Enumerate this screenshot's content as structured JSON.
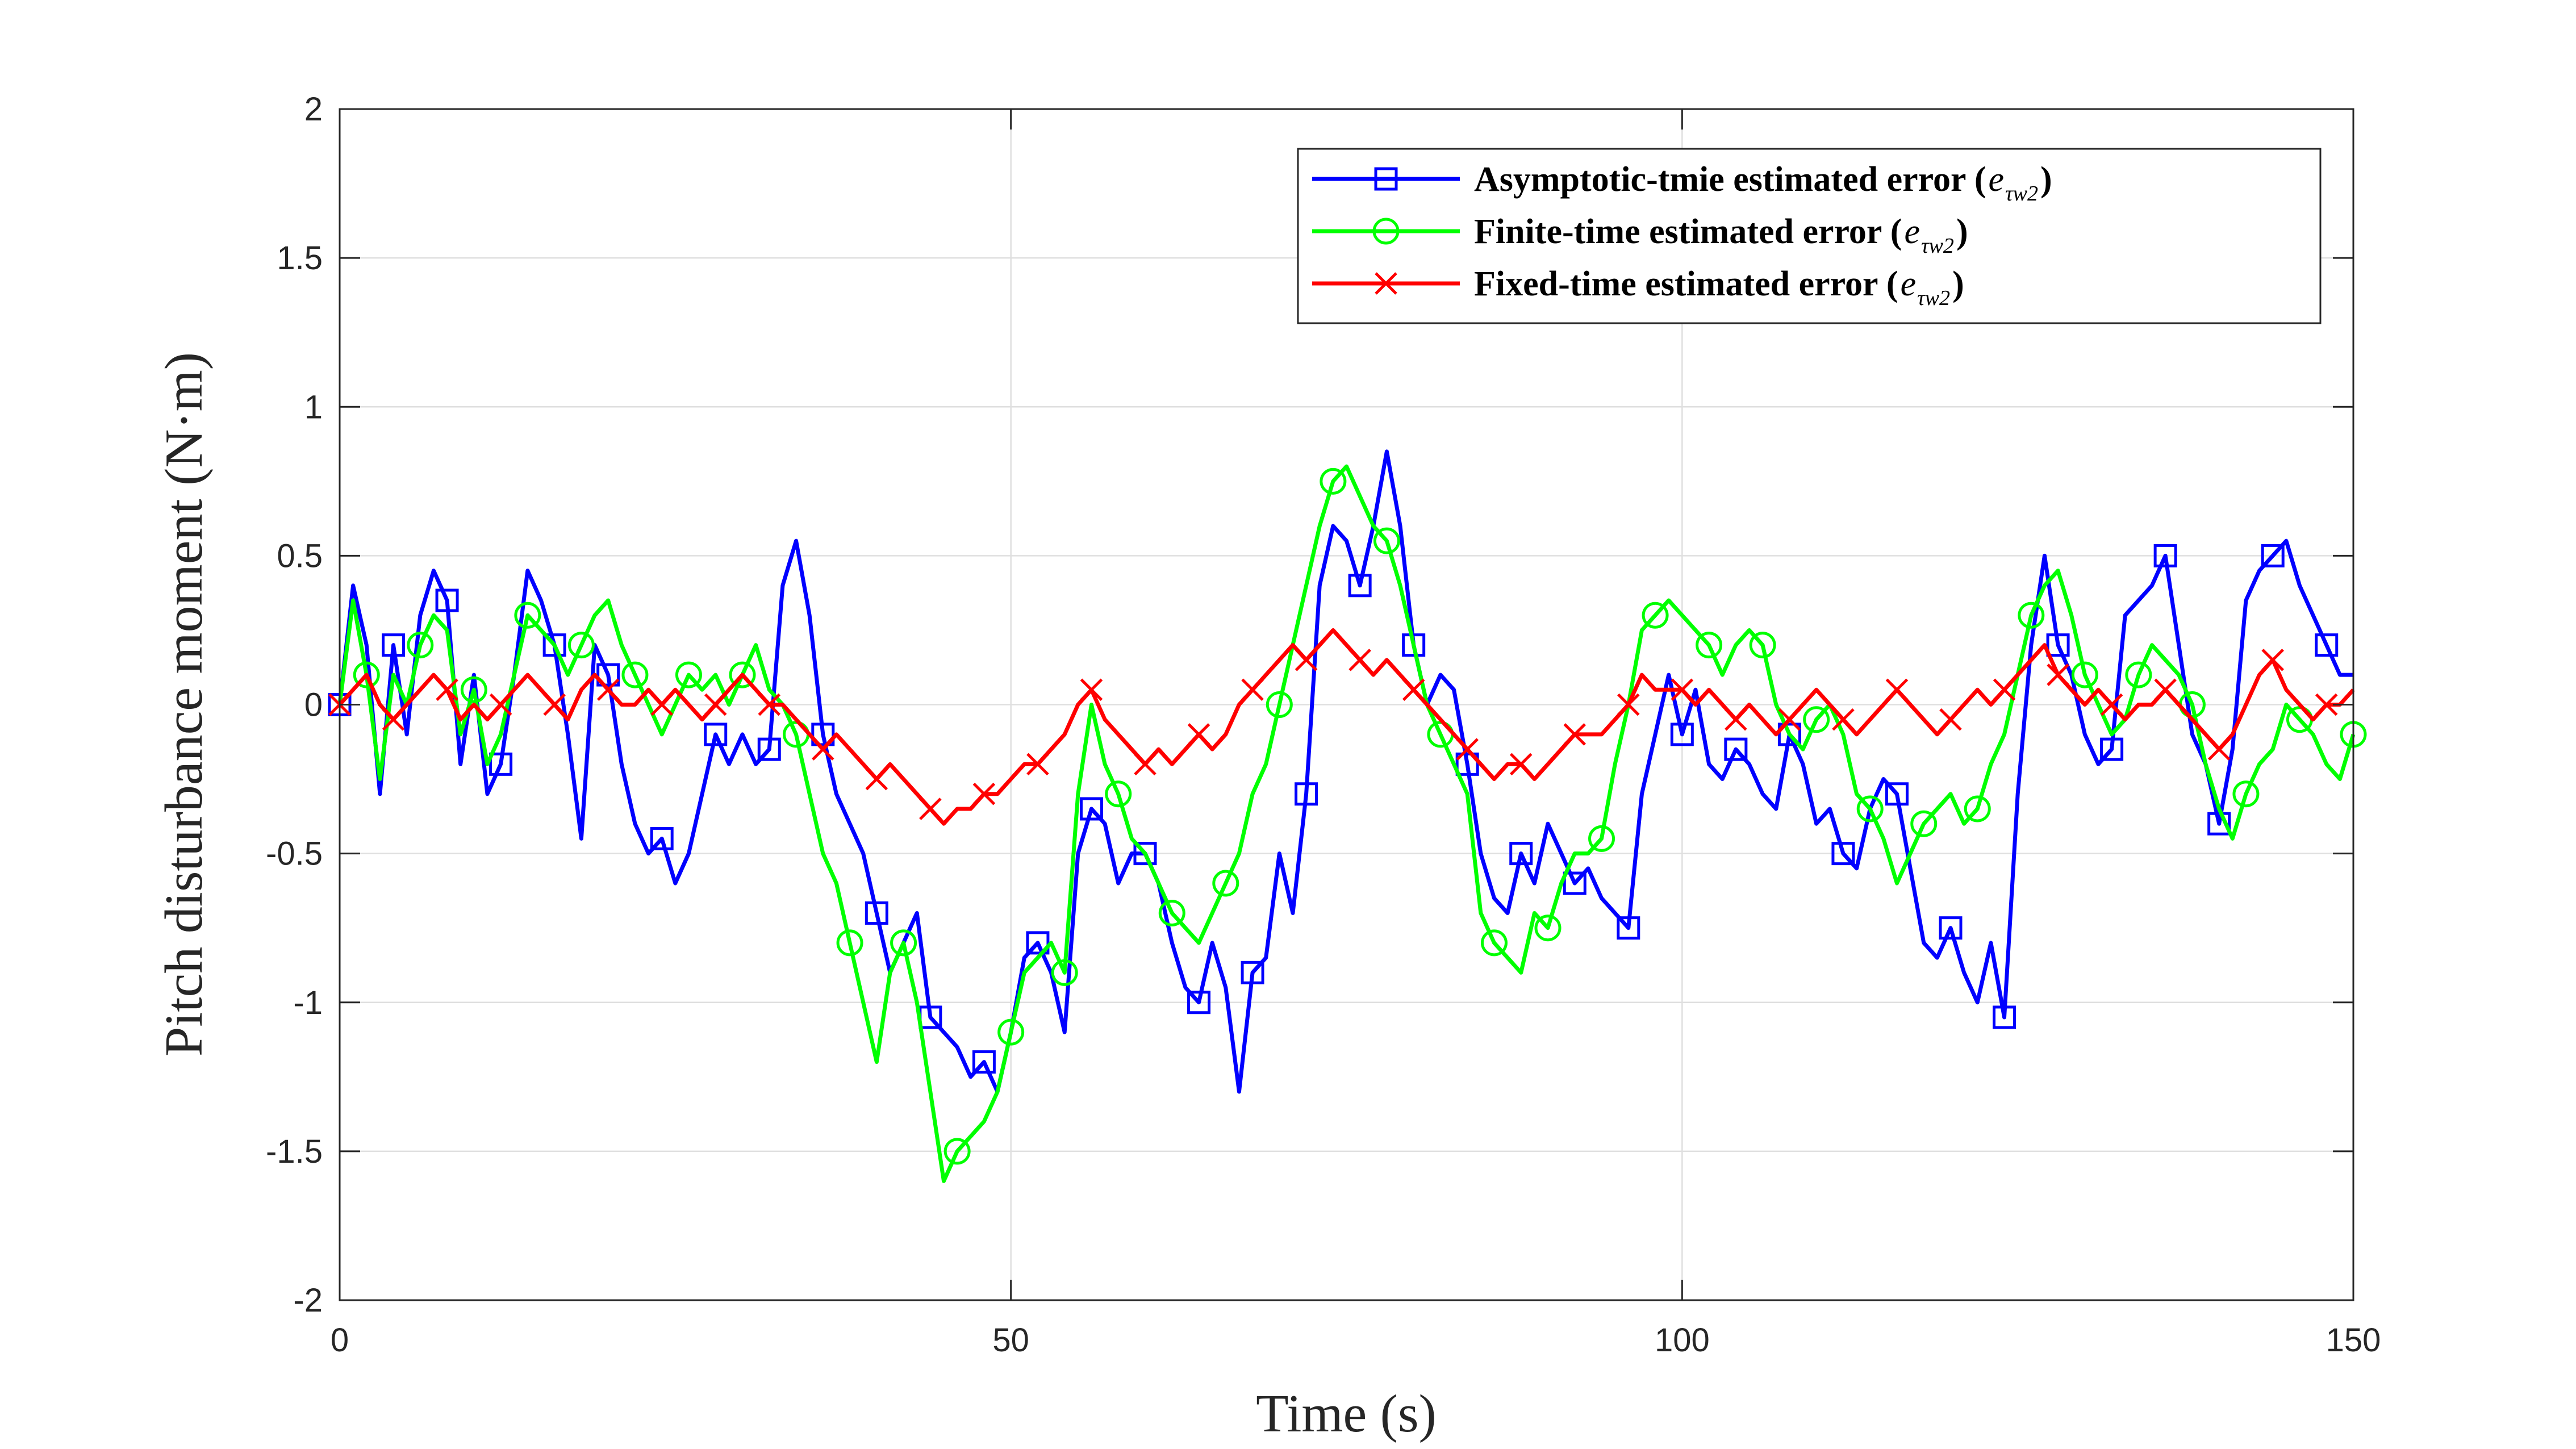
{
  "chart_data": {
    "type": "line",
    "title": "",
    "xlabel": "Time (s)",
    "ylabel": "Pitch disturbance moment (N·m)",
    "xlim": [
      0,
      150
    ],
    "ylim": [
      -2,
      2
    ],
    "xticks": [
      0,
      50,
      100,
      150
    ],
    "xtick_labels": [
      "0",
      "50",
      "100",
      "150"
    ],
    "yticks": [
      -2,
      -1.5,
      -1,
      -0.5,
      0,
      0.5,
      1,
      1.5,
      2
    ],
    "ytick_labels": [
      "-2",
      "-1.5",
      "-1",
      "-0.5",
      "0",
      "0.5",
      "1",
      "1.5",
      "2"
    ],
    "grid": true,
    "legend_position": "top-right",
    "series": [
      {
        "name": "Asymptotic-tmie estimated error (e",
        "symbol": "e",
        "subscript": "τw2",
        "color": "#0000ff",
        "marker": "square",
        "x": [
          0,
          1,
          2,
          3,
          4,
          5,
          6,
          7,
          8,
          9,
          10,
          11,
          12,
          13,
          14,
          15,
          16,
          17,
          18,
          19,
          20,
          21,
          22,
          23,
          24,
          25,
          26,
          27,
          28,
          29,
          30,
          31,
          32,
          33,
          34,
          35,
          36,
          37,
          38,
          39,
          40,
          41,
          42,
          43,
          44,
          45,
          46,
          47,
          48,
          49,
          50,
          51,
          52,
          53,
          54,
          55,
          56,
          57,
          58,
          59,
          60,
          61,
          62,
          63,
          64,
          65,
          66,
          67,
          68,
          69,
          70,
          71,
          72,
          73,
          74,
          75,
          76,
          77,
          78,
          79,
          80,
          81,
          82,
          83,
          84,
          85,
          86,
          87,
          88,
          89,
          90,
          91,
          92,
          93,
          94,
          95,
          96,
          97,
          98,
          99,
          100,
          101,
          102,
          103,
          104,
          105,
          106,
          107,
          108,
          109,
          110,
          111,
          112,
          113,
          114,
          115,
          116,
          117,
          118,
          119,
          120,
          121,
          122,
          123,
          124,
          125,
          126,
          127,
          128,
          129,
          130,
          131,
          132,
          133,
          134,
          135,
          136,
          137,
          138,
          139,
          140,
          141,
          142,
          143,
          144,
          145,
          146,
          147,
          148,
          149,
          150
        ],
        "values": [
          0,
          0.4,
          0.2,
          -0.3,
          0.2,
          -0.1,
          0.3,
          0.45,
          0.35,
          -0.2,
          0.1,
          -0.3,
          -0.2,
          0.1,
          0.45,
          0.35,
          0.2,
          -0.1,
          -0.45,
          0.2,
          0.1,
          -0.2,
          -0.4,
          -0.5,
          -0.45,
          -0.6,
          -0.5,
          -0.3,
          -0.1,
          -0.2,
          -0.1,
          -0.2,
          -0.15,
          0.4,
          0.55,
          0.3,
          -0.1,
          -0.3,
          -0.4,
          -0.5,
          -0.7,
          -0.9,
          -0.8,
          -0.7,
          -1.05,
          -1.1,
          -1.15,
          -1.25,
          -1.2,
          -1.3,
          -1.1,
          -0.85,
          -0.8,
          -0.9,
          -1.1,
          -0.5,
          -0.35,
          -0.4,
          -0.6,
          -0.5,
          -0.5,
          -0.6,
          -0.8,
          -0.95,
          -1.0,
          -0.8,
          -0.95,
          -1.3,
          -0.9,
          -0.85,
          -0.5,
          -0.7,
          -0.3,
          0.4,
          0.6,
          0.55,
          0.4,
          0.6,
          0.85,
          0.6,
          0.2,
          0.0,
          0.1,
          0.05,
          -0.2,
          -0.5,
          -0.65,
          -0.7,
          -0.5,
          -0.6,
          -0.4,
          -0.5,
          -0.6,
          -0.55,
          -0.65,
          -0.7,
          -0.75,
          -0.3,
          -0.1,
          0.1,
          -0.1,
          0.05,
          -0.2,
          -0.25,
          -0.15,
          -0.2,
          -0.3,
          -0.35,
          -0.1,
          -0.2,
          -0.4,
          -0.35,
          -0.5,
          -0.55,
          -0.35,
          -0.25,
          -0.3,
          -0.55,
          -0.8,
          -0.85,
          -0.75,
          -0.9,
          -1.0,
          -0.8,
          -1.05,
          -0.3,
          0.2,
          0.5,
          0.2,
          0.1,
          -0.1,
          -0.2,
          -0.15,
          0.3,
          0.35,
          0.4,
          0.5,
          0.2,
          -0.1,
          -0.2,
          -0.4,
          -0.15,
          0.35,
          0.45,
          0.5,
          0.55,
          0.4,
          0.3,
          0.2,
          0.1,
          0.1
        ]
      },
      {
        "name": "Finite-time estimated error (e",
        "symbol": "e",
        "subscript": "τw2",
        "color": "#00ff00",
        "marker": "circle",
        "x": [
          0,
          1,
          2,
          3,
          4,
          5,
          6,
          7,
          8,
          9,
          10,
          11,
          12,
          13,
          14,
          15,
          16,
          17,
          18,
          19,
          20,
          21,
          22,
          23,
          24,
          25,
          26,
          27,
          28,
          29,
          30,
          31,
          32,
          33,
          34,
          35,
          36,
          37,
          38,
          39,
          40,
          41,
          42,
          43,
          44,
          45,
          46,
          47,
          48,
          49,
          50,
          51,
          52,
          53,
          54,
          55,
          56,
          57,
          58,
          59,
          60,
          61,
          62,
          63,
          64,
          65,
          66,
          67,
          68,
          69,
          70,
          71,
          72,
          73,
          74,
          75,
          76,
          77,
          78,
          79,
          80,
          81,
          82,
          83,
          84,
          85,
          86,
          87,
          88,
          89,
          90,
          91,
          92,
          93,
          94,
          95,
          96,
          97,
          98,
          99,
          100,
          101,
          102,
          103,
          104,
          105,
          106,
          107,
          108,
          109,
          110,
          111,
          112,
          113,
          114,
          115,
          116,
          117,
          118,
          119,
          120,
          121,
          122,
          123,
          124,
          125,
          126,
          127,
          128,
          129,
          130,
          131,
          132,
          133,
          134,
          135,
          136,
          137,
          138,
          139,
          140,
          141,
          142,
          143,
          144,
          145,
          146,
          147,
          148,
          149,
          150
        ],
        "values": [
          0,
          0.35,
          0.1,
          -0.25,
          0.1,
          0.0,
          0.2,
          0.3,
          0.25,
          -0.1,
          0.05,
          -0.2,
          -0.1,
          0.1,
          0.3,
          0.25,
          0.2,
          0.1,
          0.2,
          0.3,
          0.35,
          0.2,
          0.1,
          0.0,
          -0.1,
          0.0,
          0.1,
          0.05,
          0.1,
          0.0,
          0.1,
          0.2,
          0.05,
          0.0,
          -0.1,
          -0.3,
          -0.5,
          -0.6,
          -0.8,
          -1.0,
          -1.2,
          -0.9,
          -0.8,
          -1.0,
          -1.3,
          -1.6,
          -1.5,
          -1.45,
          -1.4,
          -1.3,
          -1.1,
          -0.9,
          -0.85,
          -0.8,
          -0.9,
          -0.3,
          0.0,
          -0.2,
          -0.3,
          -0.45,
          -0.5,
          -0.6,
          -0.7,
          -0.75,
          -0.8,
          -0.7,
          -0.6,
          -0.5,
          -0.3,
          -0.2,
          0.0,
          0.2,
          0.4,
          0.6,
          0.75,
          0.8,
          0.7,
          0.6,
          0.55,
          0.4,
          0.2,
          0.0,
          -0.1,
          -0.2,
          -0.3,
          -0.7,
          -0.8,
          -0.85,
          -0.9,
          -0.7,
          -0.75,
          -0.6,
          -0.5,
          -0.5,
          -0.45,
          -0.2,
          0.0,
          0.25,
          0.3,
          0.35,
          0.3,
          0.25,
          0.2,
          0.1,
          0.2,
          0.25,
          0.2,
          0.0,
          -0.1,
          -0.15,
          -0.05,
          0.0,
          -0.1,
          -0.3,
          -0.35,
          -0.45,
          -0.6,
          -0.5,
          -0.4,
          -0.35,
          -0.3,
          -0.4,
          -0.35,
          -0.2,
          -0.1,
          0.1,
          0.3,
          0.4,
          0.45,
          0.3,
          0.1,
          0.0,
          -0.1,
          -0.05,
          0.1,
          0.2,
          0.15,
          0.1,
          0.0,
          -0.2,
          -0.35,
          -0.45,
          -0.3,
          -0.2,
          -0.15,
          0.0,
          -0.05,
          -0.1,
          -0.2,
          -0.25,
          -0.1
        ]
      },
      {
        "name": "Fixed-time estimated error (e",
        "symbol": "e",
        "subscript": "τw2",
        "color": "#ff0000",
        "marker": "x",
        "x": [
          0,
          1,
          2,
          3,
          4,
          5,
          6,
          7,
          8,
          9,
          10,
          11,
          12,
          13,
          14,
          15,
          16,
          17,
          18,
          19,
          20,
          21,
          22,
          23,
          24,
          25,
          26,
          27,
          28,
          29,
          30,
          31,
          32,
          33,
          34,
          35,
          36,
          37,
          38,
          39,
          40,
          41,
          42,
          43,
          44,
          45,
          46,
          47,
          48,
          49,
          50,
          51,
          52,
          53,
          54,
          55,
          56,
          57,
          58,
          59,
          60,
          61,
          62,
          63,
          64,
          65,
          66,
          67,
          68,
          69,
          70,
          71,
          72,
          73,
          74,
          75,
          76,
          77,
          78,
          79,
          80,
          81,
          82,
          83,
          84,
          85,
          86,
          87,
          88,
          89,
          90,
          91,
          92,
          93,
          94,
          95,
          96,
          97,
          98,
          99,
          100,
          101,
          102,
          103,
          104,
          105,
          106,
          107,
          108,
          109,
          110,
          111,
          112,
          113,
          114,
          115,
          116,
          117,
          118,
          119,
          120,
          121,
          122,
          123,
          124,
          125,
          126,
          127,
          128,
          129,
          130,
          131,
          132,
          133,
          134,
          135,
          136,
          137,
          138,
          139,
          140,
          141,
          142,
          143,
          144,
          145,
          146,
          147,
          148,
          149,
          150
        ],
        "values": [
          0,
          0.05,
          0.1,
          0.0,
          -0.05,
          0.0,
          0.05,
          0.1,
          0.05,
          -0.05,
          0.0,
          -0.05,
          0.0,
          0.05,
          0.1,
          0.05,
          0.0,
          -0.05,
          0.05,
          0.1,
          0.05,
          0.0,
          0.0,
          0.05,
          0.0,
          0.05,
          0.0,
          -0.05,
          0.0,
          0.05,
          0.1,
          0.05,
          0.0,
          0.0,
          -0.05,
          -0.1,
          -0.15,
          -0.1,
          -0.15,
          -0.2,
          -0.25,
          -0.2,
          -0.25,
          -0.3,
          -0.35,
          -0.4,
          -0.35,
          -0.35,
          -0.3,
          -0.3,
          -0.25,
          -0.2,
          -0.2,
          -0.15,
          -0.1,
          0.0,
          0.05,
          -0.05,
          -0.1,
          -0.15,
          -0.2,
          -0.15,
          -0.2,
          -0.15,
          -0.1,
          -0.15,
          -0.1,
          0.0,
          0.05,
          0.1,
          0.15,
          0.2,
          0.15,
          0.2,
          0.25,
          0.2,
          0.15,
          0.1,
          0.15,
          0.1,
          0.05,
          0.0,
          -0.05,
          -0.1,
          -0.15,
          -0.2,
          -0.25,
          -0.2,
          -0.2,
          -0.25,
          -0.2,
          -0.15,
          -0.1,
          -0.1,
          -0.1,
          -0.05,
          0.0,
          0.1,
          0.05,
          0.05,
          0.05,
          0.0,
          0.05,
          0.0,
          -0.05,
          0.0,
          -0.05,
          -0.1,
          -0.05,
          0.0,
          0.05,
          0.0,
          -0.05,
          -0.1,
          -0.05,
          0.0,
          0.05,
          0.0,
          -0.05,
          -0.1,
          -0.05,
          0.0,
          0.05,
          0.0,
          0.05,
          0.1,
          0.15,
          0.2,
          0.1,
          0.05,
          0.0,
          0.05,
          0.0,
          -0.05,
          0.0,
          0.0,
          0.05,
          0.0,
          -0.05,
          -0.1,
          -0.15,
          -0.1,
          0.0,
          0.1,
          0.15,
          0.05,
          0.0,
          -0.05,
          0.0,
          0.0,
          0.05
        ]
      }
    ]
  }
}
